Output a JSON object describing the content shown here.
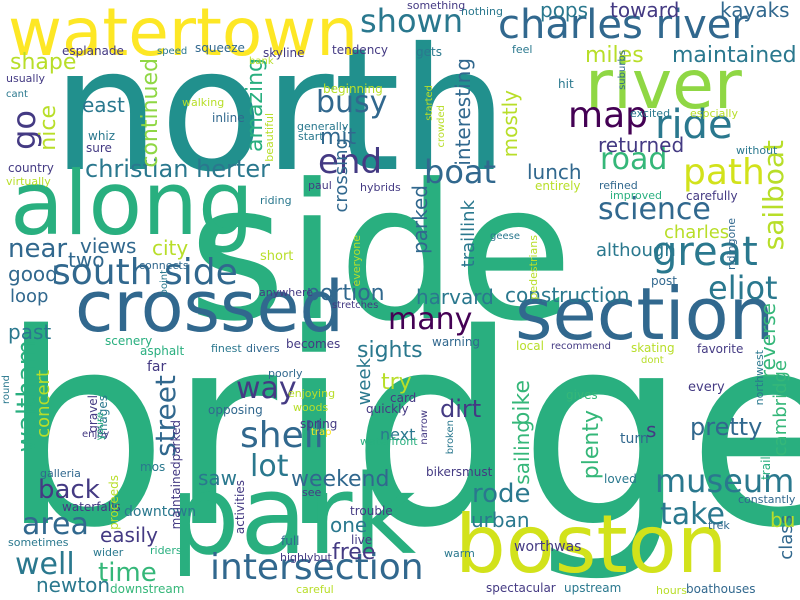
{
  "palette": {
    "background": "#ffffff",
    "teal": "#21908d",
    "green": "#29af7f",
    "lime": "#8fd744",
    "yellow": "#fde725",
    "blue": "#31688e",
    "indigo": "#443a83",
    "purple": "#440154",
    "aqua": "#35b779",
    "chartreuse": "#b8de29"
  },
  "words": [
    {
      "text": "bridge",
      "color": "#29af7f"
    },
    {
      "text": "north",
      "color": "#21908d"
    },
    {
      "text": "side",
      "color": "#29af7f"
    },
    {
      "text": "park",
      "color": "#29af7f"
    },
    {
      "text": "along",
      "color": "#29af7f"
    },
    {
      "text": "boston",
      "color": "#d2e21b"
    },
    {
      "text": "watertown",
      "color": "#fde725"
    },
    {
      "text": "crossed",
      "color": "#31688e"
    },
    {
      "text": "section",
      "color": "#31688e"
    },
    {
      "text": "river",
      "color": "#8fd744"
    },
    {
      "text": "charles river",
      "color": "#31688e"
    },
    {
      "text": "south side",
      "color": "#31688e"
    },
    {
      "text": "intersection",
      "color": "#31688e"
    },
    {
      "text": "museum",
      "color": "#2a788e"
    },
    {
      "text": "great",
      "color": "#2a788e"
    },
    {
      "text": "ride",
      "color": "#2a788e"
    },
    {
      "text": "shown",
      "color": "#2a788e"
    },
    {
      "text": "map",
      "color": "#440154"
    },
    {
      "text": "path",
      "color": "#d2e21b"
    },
    {
      "text": "boat",
      "color": "#31688e"
    },
    {
      "text": "road",
      "color": "#35b779"
    },
    {
      "text": "science",
      "color": "#31688e"
    },
    {
      "text": "christian herter",
      "color": "#2a788e"
    },
    {
      "text": "end",
      "color": "#443a83"
    },
    {
      "text": "busy",
      "color": "#31688e"
    },
    {
      "text": "go",
      "color": "#443a83"
    },
    {
      "text": "mit",
      "color": "#31688e"
    },
    {
      "text": "amazing",
      "color": "#29af7f"
    },
    {
      "text": "continued",
      "color": "#8fd744"
    },
    {
      "text": "nice",
      "color": "#b8de29"
    },
    {
      "text": "east",
      "color": "#2a788e"
    },
    {
      "text": "shape",
      "color": "#b8de29"
    },
    {
      "text": "interesting",
      "color": "#31688e"
    },
    {
      "text": "mostly",
      "color": "#b8de29"
    },
    {
      "text": "maintained",
      "color": "#2a788e"
    },
    {
      "text": "miles",
      "color": "#b8de29"
    },
    {
      "text": "returned",
      "color": "#443a83"
    },
    {
      "text": "lunch",
      "color": "#31688e"
    },
    {
      "text": "toward",
      "color": "#443a83"
    },
    {
      "text": "pops",
      "color": "#2a788e"
    },
    {
      "text": "kayaks",
      "color": "#31688e"
    },
    {
      "text": "sailboat",
      "color": "#b8de29"
    },
    {
      "text": "eliot",
      "color": "#2a788e"
    },
    {
      "text": "near",
      "color": "#31688e"
    },
    {
      "text": "views",
      "color": "#31688e"
    },
    {
      "text": "city",
      "color": "#b8de29"
    },
    {
      "text": "two",
      "color": "#31688e"
    },
    {
      "text": "crossing",
      "color": "#31688e"
    },
    {
      "text": "parked",
      "color": "#31688e"
    },
    {
      "text": "traillink",
      "color": "#2a788e"
    },
    {
      "text": "although",
      "color": "#2a788e"
    },
    {
      "text": "charles",
      "color": "#b8de29"
    },
    {
      "text": "good",
      "color": "#31688e"
    },
    {
      "text": "loop",
      "color": "#31688e"
    },
    {
      "text": "past",
      "color": "#2a788e"
    },
    {
      "text": "many",
      "color": "#440154"
    },
    {
      "text": "portion",
      "color": "#31688e"
    },
    {
      "text": "harvard",
      "color": "#2a788e"
    },
    {
      "text": "construction",
      "color": "#2a788e"
    },
    {
      "text": "reverse",
      "color": "#35b779"
    },
    {
      "text": "sights",
      "color": "#2a788e"
    },
    {
      "text": "waltham",
      "color": "#29af7f"
    },
    {
      "text": "way",
      "color": "#443a83"
    },
    {
      "text": "try",
      "color": "#b8de29"
    },
    {
      "text": "week",
      "color": "#2a788e"
    },
    {
      "text": "bike",
      "color": "#35b779"
    },
    {
      "text": "shell",
      "color": "#31688e"
    },
    {
      "text": "lot",
      "color": "#2a788e"
    },
    {
      "text": "dirt",
      "color": "#443a83"
    },
    {
      "text": "sailing",
      "color": "#35b779"
    },
    {
      "text": "concert",
      "color": "#b8de29"
    },
    {
      "text": "street",
      "color": "#31688e"
    },
    {
      "text": "pretty",
      "color": "#31688e"
    },
    {
      "text": "cambridge",
      "color": "#35b779"
    },
    {
      "text": "plenty",
      "color": "#35b779"
    },
    {
      "text": "s",
      "color": "#443a83"
    },
    {
      "text": "take",
      "color": "#2a788e"
    },
    {
      "text": "back",
      "color": "#443a83"
    },
    {
      "text": "weekend",
      "color": "#31688e"
    },
    {
      "text": "rode",
      "color": "#2a788e"
    },
    {
      "text": "area",
      "color": "#31688e"
    },
    {
      "text": "easily",
      "color": "#443a83"
    },
    {
      "text": "well",
      "color": "#2a788e"
    },
    {
      "text": "time",
      "color": "#35b779"
    },
    {
      "text": "newton",
      "color": "#2a788e"
    },
    {
      "text": "free",
      "color": "#443a83"
    },
    {
      "text": "one",
      "color": "#2a788e"
    },
    {
      "text": "urban",
      "color": "#2a788e"
    },
    {
      "text": "class",
      "color": "#31688e"
    },
    {
      "text": "bu",
      "color": "#b8de29"
    },
    {
      "text": "saw",
      "color": "#2a788e"
    },
    {
      "text": "downtown",
      "color": "#2a788e"
    },
    {
      "text": "waterfalls",
      "color": "#443a83"
    },
    {
      "text": "galleria",
      "color": "#31688e"
    },
    {
      "text": "sometimes",
      "color": "#2a788e"
    },
    {
      "text": "wider",
      "color": "#2a788e"
    },
    {
      "text": "riders",
      "color": "#29af7f"
    },
    {
      "text": "downstream",
      "color": "#35b779"
    },
    {
      "text": "spectacular",
      "color": "#443a83"
    },
    {
      "text": "upstream",
      "color": "#2a788e"
    },
    {
      "text": "hours",
      "color": "#b8de29"
    },
    {
      "text": "boathouses",
      "color": "#31688e"
    },
    {
      "text": "worthwas",
      "color": "#443a83"
    },
    {
      "text": "trek",
      "color": "#31688e"
    },
    {
      "text": "warm",
      "color": "#2a788e"
    },
    {
      "text": "live",
      "color": "#443a83"
    },
    {
      "text": "trouble",
      "color": "#443a83"
    },
    {
      "text": "full",
      "color": "#31688e"
    },
    {
      "text": "highlybut",
      "color": "#443a83"
    },
    {
      "text": "careful",
      "color": "#b8de29"
    },
    {
      "text": "see",
      "color": "#443a83"
    },
    {
      "text": "bikersmust",
      "color": "#443a83"
    },
    {
      "text": "loved",
      "color": "#2a788e"
    },
    {
      "text": "turn",
      "color": "#31688e"
    },
    {
      "text": "next",
      "color": "#2a788e"
    },
    {
      "text": "quickly",
      "color": "#443a83"
    },
    {
      "text": "narrow",
      "color": "#443a83"
    },
    {
      "text": "broken",
      "color": "#2a788e"
    },
    {
      "text": "waterfront",
      "color": "#29af7f"
    },
    {
      "text": "spring",
      "color": "#443a83"
    },
    {
      "text": "trap",
      "color": "#fde725"
    },
    {
      "text": "woods",
      "color": "#b8de29"
    },
    {
      "text": "enjoying",
      "color": "#b8de29"
    },
    {
      "text": "poorly",
      "color": "#31688e"
    },
    {
      "text": "opposing",
      "color": "#31688e"
    },
    {
      "text": "finest",
      "color": "#2a788e"
    },
    {
      "text": "divers",
      "color": "#31688e"
    },
    {
      "text": "becomes",
      "color": "#443a83"
    },
    {
      "text": "warning",
      "color": "#31688e"
    },
    {
      "text": "card",
      "color": "#443a83"
    },
    {
      "text": "gives",
      "color": "#35b779"
    },
    {
      "text": "every",
      "color": "#443a83"
    },
    {
      "text": "northwest",
      "color": "#2a788e"
    },
    {
      "text": "trails",
      "color": "#29af7f"
    },
    {
      "text": "constantly",
      "color": "#31688e"
    },
    {
      "text": "favorite",
      "color": "#443a83"
    },
    {
      "text": "skating",
      "color": "#b8de29"
    },
    {
      "text": "dont",
      "color": "#b8de29"
    },
    {
      "text": "local",
      "color": "#b8de29"
    },
    {
      "text": "recommend",
      "color": "#443a83"
    },
    {
      "text": "far",
      "color": "#443a83"
    },
    {
      "text": "scenery",
      "color": "#29af7f"
    },
    {
      "text": "asphalt",
      "color": "#29af7f"
    },
    {
      "text": "gravel",
      "color": "#443a83"
    },
    {
      "text": "images",
      "color": "#2a788e"
    },
    {
      "text": "enjoy",
      "color": "#443a83"
    },
    {
      "text": "youre",
      "color": "#29af7f"
    },
    {
      "text": "maintainedparked",
      "color": "#443a83"
    },
    {
      "text": "proceeds",
      "color": "#b8de29"
    },
    {
      "text": "mos",
      "color": "#2a788e"
    },
    {
      "text": "activities",
      "color": "#443a83"
    },
    {
      "text": "stretches",
      "color": "#443a83"
    },
    {
      "text": "round",
      "color": "#2a788e"
    },
    {
      "text": "point",
      "color": "#2a788e"
    },
    {
      "text": "connects",
      "color": "#31688e"
    },
    {
      "text": "anywhere",
      "color": "#443a83"
    },
    {
      "text": "short",
      "color": "#b8de29"
    },
    {
      "text": "everyone",
      "color": "#b8de29"
    },
    {
      "text": "pedestrians",
      "color": "#b8de29"
    },
    {
      "text": "geese",
      "color": "#2a788e"
    },
    {
      "text": "post",
      "color": "#31688e"
    },
    {
      "text": "ridingone",
      "color": "#31688e"
    },
    {
      "text": "carefully",
      "color": "#443a83"
    },
    {
      "text": "refined",
      "color": "#31688e"
    },
    {
      "text": "improved",
      "color": "#29af7f"
    },
    {
      "text": "entirely",
      "color": "#b8de29"
    },
    {
      "text": "paul",
      "color": "#443a83"
    },
    {
      "text": "hybrids",
      "color": "#443a83"
    },
    {
      "text": "riding",
      "color": "#2a788e"
    },
    {
      "text": "country",
      "color": "#443a83"
    },
    {
      "text": "virtually",
      "color": "#b8de29"
    },
    {
      "text": "whiz",
      "color": "#2a788e"
    },
    {
      "text": "sure",
      "color": "#443a83"
    },
    {
      "text": "inline",
      "color": "#31688e"
    },
    {
      "text": "walking",
      "color": "#b8de29"
    },
    {
      "text": "beautiful",
      "color": "#b8de29"
    },
    {
      "text": "start",
      "color": "#2a788e"
    },
    {
      "text": "generally",
      "color": "#2a788e"
    },
    {
      "text": "beginning",
      "color": "#b8de29"
    },
    {
      "text": "started",
      "color": "#b8de29"
    },
    {
      "text": "crowded",
      "color": "#b8de29"
    },
    {
      "text": "gets",
      "color": "#2a788e"
    },
    {
      "text": "tendency",
      "color": "#443a83"
    },
    {
      "text": "skyline",
      "color": "#443a83"
    },
    {
      "text": "squeeze",
      "color": "#31688e"
    },
    {
      "text": "speed",
      "color": "#2a788e"
    },
    {
      "text": "bank",
      "color": "#b8de29"
    },
    {
      "text": "esplanade",
      "color": "#443a83"
    },
    {
      "text": "usually",
      "color": "#443a83"
    },
    {
      "text": "cant",
      "color": "#2a788e"
    },
    {
      "text": "something",
      "color": "#443a83"
    },
    {
      "text": "nothing",
      "color": "#2a788e"
    },
    {
      "text": "feel",
      "color": "#2a788e"
    },
    {
      "text": "suburbs",
      "color": "#31688e"
    },
    {
      "text": "hit",
      "color": "#2a788e"
    },
    {
      "text": "excited",
      "color": "#2a788e"
    },
    {
      "text": "espcially",
      "color": "#b8de29"
    },
    {
      "text": "without",
      "color": "#2a788e"
    }
  ]
}
